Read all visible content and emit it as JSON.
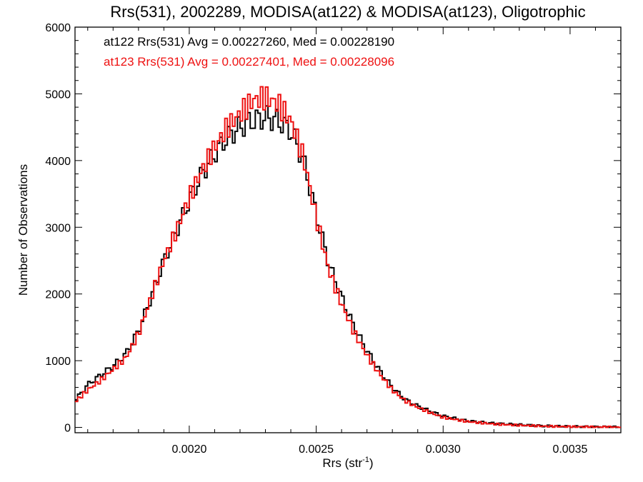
{
  "chart_data": {
    "type": "histogram-step",
    "title": "Rrs(531), 2002289, MODISA(at122) & MODISA(at123), Oligotrophic",
    "xlabel_main": "Rrs (str",
    "xlabel_sup": "-1",
    "xlabel_close": ")",
    "ylabel": "Number of Observations",
    "xlim": [
      0.00155,
      0.0037
    ],
    "ylim": [
      -80,
      6000
    ],
    "x_ticks": [
      0.002,
      0.0025,
      0.003,
      0.0035
    ],
    "x_tick_labels": [
      "0.0020",
      "0.0025",
      "0.0030",
      "0.0035"
    ],
    "x_minor_step": 0.0001,
    "y_ticks": [
      0,
      1000,
      2000,
      3000,
      4000,
      5000,
      6000
    ],
    "y_tick_labels": [
      "0",
      "1000",
      "2000",
      "3000",
      "4000",
      "5000",
      "6000"
    ],
    "y_minor_step": 200,
    "grid": false,
    "legend_position": "top-left",
    "series": [
      {
        "name": "at122",
        "color": "#000000",
        "legend": "at122 Rrs(531) Avg = 0.00227260, Med = 0.00228190",
        "x": [
          0.00155,
          0.0016,
          0.00165,
          0.0017,
          0.00175,
          0.0018,
          0.00185,
          0.0019,
          0.00195,
          0.002,
          0.00205,
          0.0021,
          0.00215,
          0.0022,
          0.00225,
          0.0023,
          0.00235,
          0.0024,
          0.00245,
          0.0025,
          0.00255,
          0.0026,
          0.00265,
          0.0027,
          0.00275,
          0.0028,
          0.00285,
          0.0029,
          0.00295,
          0.003,
          0.0031,
          0.0032,
          0.0033,
          0.0034,
          0.0035,
          0.0036,
          0.0037
        ],
        "y": [
          400,
          640,
          780,
          920,
          1100,
          1450,
          1950,
          2500,
          2950,
          3400,
          3800,
          4100,
          4350,
          4500,
          4600,
          4650,
          4600,
          4450,
          4000,
          3200,
          2450,
          1950,
          1500,
          1150,
          850,
          600,
          420,
          320,
          240,
          170,
          95,
          60,
          40,
          22,
          14,
          8,
          5
        ]
      },
      {
        "name": "at123",
        "color": "#ee1111",
        "legend": "at123 Rrs(531) Avg = 0.00227401, Med = 0.00228096",
        "x": [
          0.00155,
          0.0016,
          0.00165,
          0.0017,
          0.00175,
          0.0018,
          0.00185,
          0.0019,
          0.00195,
          0.002,
          0.00205,
          0.0021,
          0.00215,
          0.0022,
          0.00225,
          0.0023,
          0.00235,
          0.0024,
          0.00245,
          0.0025,
          0.00255,
          0.0026,
          0.00265,
          0.0027,
          0.00275,
          0.0028,
          0.00285,
          0.0029,
          0.00295,
          0.003,
          0.0031,
          0.0032,
          0.0033,
          0.0034,
          0.0035,
          0.0036,
          0.0037
        ],
        "y": [
          380,
          560,
          700,
          870,
          1040,
          1400,
          1950,
          2500,
          2950,
          3450,
          3850,
          4200,
          4500,
          4700,
          4900,
          4950,
          4850,
          4600,
          4050,
          3150,
          2350,
          1850,
          1420,
          1080,
          800,
          560,
          400,
          300,
          220,
          150,
          85,
          50,
          32,
          18,
          10,
          6,
          4
        ]
      }
    ]
  }
}
